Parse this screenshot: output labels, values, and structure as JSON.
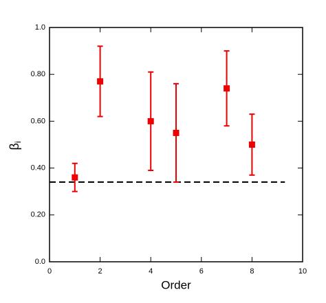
{
  "chart_data": {
    "type": "errorbar",
    "xlabel": "Order",
    "ylabel": {
      "symbol": "β",
      "subscript": "i"
    },
    "x": [
      1,
      2,
      4,
      5,
      7,
      8
    ],
    "values": [
      0.36,
      0.77,
      0.6,
      0.55,
      0.74,
      0.5
    ],
    "yerr": [
      0.06,
      0.15,
      0.21,
      0.21,
      0.16,
      0.13
    ],
    "color": "#ee0000",
    "xlim": [
      0,
      10
    ],
    "xticks": [
      0,
      2,
      4,
      6,
      8,
      10
    ],
    "ylim": [
      0,
      1
    ],
    "yticks": [
      {
        "value": 0,
        "label": "0.0"
      },
      {
        "value": 0.2,
        "label": "0.20"
      },
      {
        "value": 0.4,
        "label": "0.40"
      },
      {
        "value": 0.6,
        "label": "0.60"
      },
      {
        "value": 0.8,
        "label": "0.80"
      },
      {
        "value": 1,
        "label": "1.0"
      }
    ],
    "reference_line": {
      "y": 0.34,
      "x": [
        0,
        9.3
      ]
    }
  }
}
